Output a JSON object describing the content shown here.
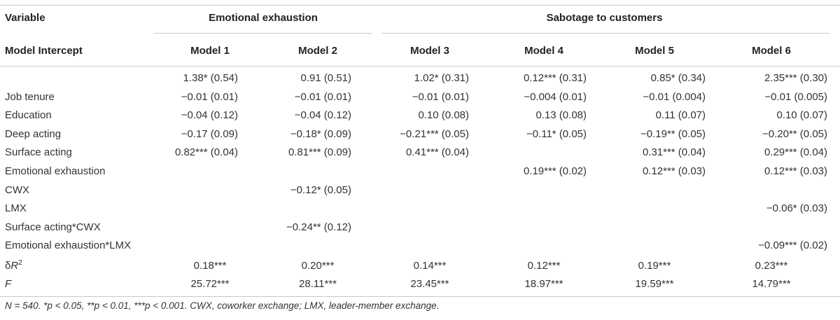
{
  "header": {
    "variable": "Variable",
    "group1": "Emotional exhaustion",
    "group2": "Sabotage to customers",
    "model_intercept": "Model Intercept",
    "models": [
      "Model 1",
      "Model 2",
      "Model 3",
      "Model 4",
      "Model 5",
      "Model 6"
    ]
  },
  "rows": [
    {
      "label": "",
      "cells": [
        "1.38* (0.54)",
        "0.91 (0.51)",
        "1.02* (0.31)",
        "0.12*** (0.31)",
        "0.85* (0.34)",
        "2.35*** (0.30)"
      ]
    },
    {
      "label": "Job tenure",
      "cells": [
        "−0.01 (0.01)",
        "−0.01 (0.01)",
        "−0.01 (0.01)",
        "−0.004 (0.01)",
        "−0.01 (0.004)",
        "−0.01 (0.005)"
      ]
    },
    {
      "label": "Education",
      "cells": [
        "−0.04 (0.12)",
        "−0.04 (0.12)",
        "0.10 (0.08)",
        "0.13 (0.08)",
        "0.11 (0.07)",
        "0.10 (0.07)"
      ]
    },
    {
      "label": "Deep acting",
      "cells": [
        "−0.17 (0.09)",
        "−0.18* (0.09)",
        "−0.21*** (0.05)",
        "−0.11* (0.05)",
        "−0.19** (0.05)",
        "−0.20** (0.05)"
      ]
    },
    {
      "label": "Surface acting",
      "cells": [
        "0.82*** (0.04)",
        "0.81*** (0.09)",
        "0.41*** (0.04)",
        "",
        "0.31*** (0.04)",
        "0.29*** (0.04)"
      ]
    },
    {
      "label": "Emotional exhaustion",
      "cells": [
        "",
        "",
        "",
        "0.19*** (0.02)",
        "0.12*** (0.03)",
        "0.12*** (0.03)"
      ]
    },
    {
      "label": "CWX",
      "cells": [
        "",
        "−0.12* (0.05)",
        "",
        "",
        "",
        ""
      ]
    },
    {
      "label": "LMX",
      "cells": [
        "",
        "",
        "",
        "",
        "",
        "−0.06* (0.03)"
      ]
    },
    {
      "label": "Surface acting*CWX",
      "cells": [
        "",
        "−0.24** (0.12)",
        "",
        "",
        "",
        ""
      ]
    },
    {
      "label": "Emotional exhaustion*LMX",
      "cells": [
        "",
        "",
        "",
        "",
        "",
        "−0.09*** (0.02)"
      ]
    }
  ],
  "stats": {
    "delta_r2": {
      "label_prefix": "δ",
      "label_var": "R",
      "label_sup": "2",
      "cells": [
        "0.18***",
        "0.20***",
        "0.14***",
        "0.12***",
        "0.19***",
        "0.23***"
      ]
    },
    "f": {
      "label": "F",
      "cells": [
        "25.72***",
        "28.11***",
        "23.45***",
        "18.97***",
        "19.59***",
        "14.79***"
      ]
    }
  },
  "footnote": "N = 540. *p < 0.05, **p < 0.01, ***p < 0.001. CWX, coworker exchange; LMX, leader-member exchange."
}
